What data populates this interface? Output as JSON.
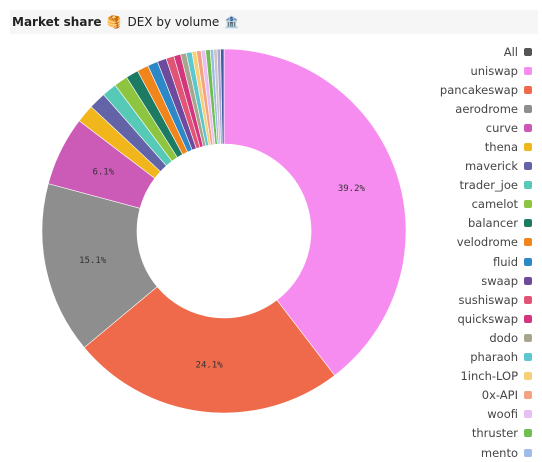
{
  "header": {
    "title": "Market share",
    "title_emoji": "🥞",
    "subtitle": "DEX by volume",
    "subtitle_emoji": "🏦"
  },
  "chart_data": {
    "type": "pie",
    "donut": true,
    "legend_position": "right",
    "legend_first_item": {
      "label": "All",
      "color": "#555555"
    },
    "slices": [
      {
        "label": "uniswap",
        "value": 39.2,
        "color": "#f78cf0",
        "show_label": true
      },
      {
        "label": "pancakeswap",
        "value": 24.1,
        "color": "#ef6a4a",
        "show_label": true
      },
      {
        "label": "aerodrome",
        "value": 15.1,
        "color": "#8e8e8e",
        "show_label": true
      },
      {
        "label": "curve",
        "value": 6.1,
        "color": "#cc5bb7",
        "show_label": true
      },
      {
        "label": "thena",
        "value": 1.6,
        "color": "#f2b61d"
      },
      {
        "label": "maverick",
        "value": 1.5,
        "color": "#6264a7"
      },
      {
        "label": "trader_joe",
        "value": 1.3,
        "color": "#56c9b7"
      },
      {
        "label": "camelot",
        "value": 1.2,
        "color": "#8dc540"
      },
      {
        "label": "balancer",
        "value": 1.1,
        "color": "#1d7b63"
      },
      {
        "label": "velodrome",
        "value": 1.0,
        "color": "#f0851b"
      },
      {
        "label": "fluid",
        "value": 0.9,
        "color": "#2d88c8"
      },
      {
        "label": "swaap",
        "value": 0.8,
        "color": "#6d4a9c"
      },
      {
        "label": "sushiswap",
        "value": 0.7,
        "color": "#e05575"
      },
      {
        "label": "quickswap",
        "value": 0.6,
        "color": "#d4367d"
      },
      {
        "label": "dodo",
        "value": 0.5,
        "color": "#a8a58d"
      },
      {
        "label": "pharaoh",
        "value": 0.5,
        "color": "#5ec6cf"
      },
      {
        "label": "1inch-LOP",
        "value": 0.4,
        "color": "#f6cf79"
      },
      {
        "label": "0x-API",
        "value": 0.4,
        "color": "#f3a37f"
      },
      {
        "label": "woofi",
        "value": 0.4,
        "color": "#e7bff2"
      },
      {
        "label": "thruster",
        "value": 0.4,
        "color": "#6fbf50"
      },
      {
        "label": "mento",
        "value": 0.3,
        "color": "#9fbce8"
      },
      {
        "label": "",
        "value": 0.3,
        "color": "#c8c8c8"
      },
      {
        "label": "",
        "value": 0.3,
        "color": "#b0a6d6"
      },
      {
        "label": "",
        "value": 0.3,
        "color": "#3f5f9e"
      }
    ]
  }
}
